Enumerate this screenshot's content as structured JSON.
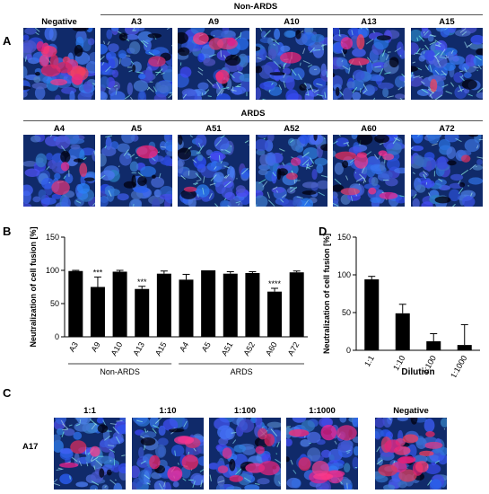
{
  "panel_letters": {
    "A": "A",
    "B": "B",
    "C": "C",
    "D": "D"
  },
  "panel_a": {
    "negative_label": "Negative",
    "group1_title": "Non-ARDS",
    "group2_title": "ARDS",
    "row1": [
      {
        "label": "Negative",
        "red": 0.55,
        "cyan": 0.05
      },
      {
        "label": "A3",
        "red": 0.05,
        "cyan": 0.3
      },
      {
        "label": "A9",
        "red": 0.2,
        "cyan": 0.25
      },
      {
        "label": "A10",
        "red": 0.03,
        "cyan": 0.35
      },
      {
        "label": "A13",
        "red": 0.12,
        "cyan": 0.3
      },
      {
        "label": "A15",
        "red": 0.02,
        "cyan": 0.55
      }
    ],
    "row2": [
      {
        "label": "A4",
        "red": 0.1,
        "cyan": 0.1
      },
      {
        "label": "A5",
        "red": 0.02,
        "cyan": 0.15
      },
      {
        "label": "A51",
        "red": 0.04,
        "cyan": 0.35
      },
      {
        "label": "A52",
        "red": 0.06,
        "cyan": 0.3
      },
      {
        "label": "A60",
        "red": 0.3,
        "cyan": 0.25
      },
      {
        "label": "A72",
        "red": 0.04,
        "cyan": 0.2
      }
    ]
  },
  "panel_c": {
    "row_label": "A17",
    "images": [
      {
        "label": "1:1",
        "red": 0.12,
        "cyan": 0.35
      },
      {
        "label": "1:10",
        "red": 0.2,
        "cyan": 0.25
      },
      {
        "label": "1:100",
        "red": 0.3,
        "cyan": 0.15
      },
      {
        "label": "1:1000",
        "red": 0.35,
        "cyan": 0.12
      },
      {
        "label": "Negative",
        "red": 0.55,
        "cyan": 0.08
      }
    ]
  },
  "chart_data": [
    {
      "type": "bar",
      "ylabel": "Neutralization of cell fusion [%]",
      "xlabel": "",
      "ylim": [
        0,
        150
      ],
      "yticks": [
        0,
        50,
        100,
        150
      ],
      "categories": [
        "A3",
        "A9",
        "A10",
        "A13",
        "A15",
        "A4",
        "A5",
        "A51",
        "A52",
        "A60",
        "A72"
      ],
      "values": [
        99,
        75,
        98,
        72,
        95,
        86,
        100,
        95,
        96,
        68,
        97
      ],
      "errors": [
        1,
        15,
        2,
        4,
        4,
        8,
        0,
        3,
        2,
        5,
        2
      ],
      "significance": [
        "",
        "***",
        "",
        "***",
        "",
        "",
        "",
        "",
        "",
        "****",
        ""
      ],
      "groups": [
        {
          "name": "Non-ARDS",
          "start": 0,
          "end": 4
        },
        {
          "name": "ARDS",
          "start": 5,
          "end": 10
        }
      ]
    },
    {
      "type": "bar",
      "ylabel": "Neutralization of cell fusion [%]",
      "xlabel": "Dilution",
      "ylim": [
        0,
        150
      ],
      "yticks": [
        0,
        50,
        100,
        150
      ],
      "categories": [
        "1:1",
        "1:10",
        "1:100",
        "1:1000"
      ],
      "values": [
        94,
        49,
        12,
        7
      ],
      "errors": [
        4,
        12,
        10,
        27
      ]
    }
  ]
}
